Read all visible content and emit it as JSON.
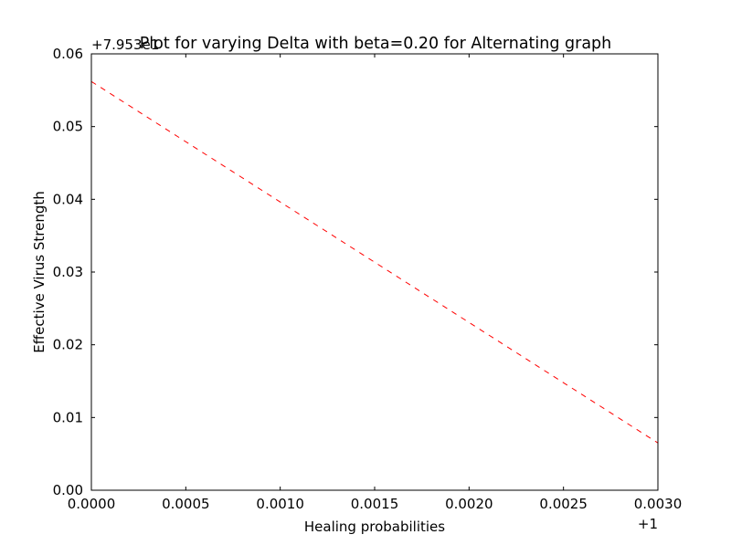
{
  "chart_data": {
    "type": "line",
    "title": "Plot for varying Delta with beta=0.20 for Alternating graph",
    "xlabel": "Healing probabilities",
    "ylabel": "Effective Virus Strength",
    "x_offset_label": "+1",
    "y_offset_label": "+7.953e1",
    "xlim": [
      0.0,
      0.003
    ],
    "ylim": [
      0.0,
      0.06
    ],
    "x_ticks": [
      0.0,
      0.0005,
      0.001,
      0.0015,
      0.002,
      0.0025,
      0.003
    ],
    "x_tick_labels": [
      "0.0000",
      "0.0005",
      "0.0010",
      "0.0015",
      "0.0020",
      "0.0025",
      "0.0030"
    ],
    "y_ticks": [
      0.0,
      0.01,
      0.02,
      0.03,
      0.04,
      0.05,
      0.06
    ],
    "y_tick_labels": [
      "0.00",
      "0.01",
      "0.02",
      "0.03",
      "0.04",
      "0.05",
      "0.06"
    ],
    "grid": false,
    "series": [
      {
        "color": "#ff0000",
        "line_style": "dashed",
        "x": [
          0.0,
          0.003
        ],
        "y": [
          0.0562,
          0.0065
        ]
      }
    ]
  }
}
